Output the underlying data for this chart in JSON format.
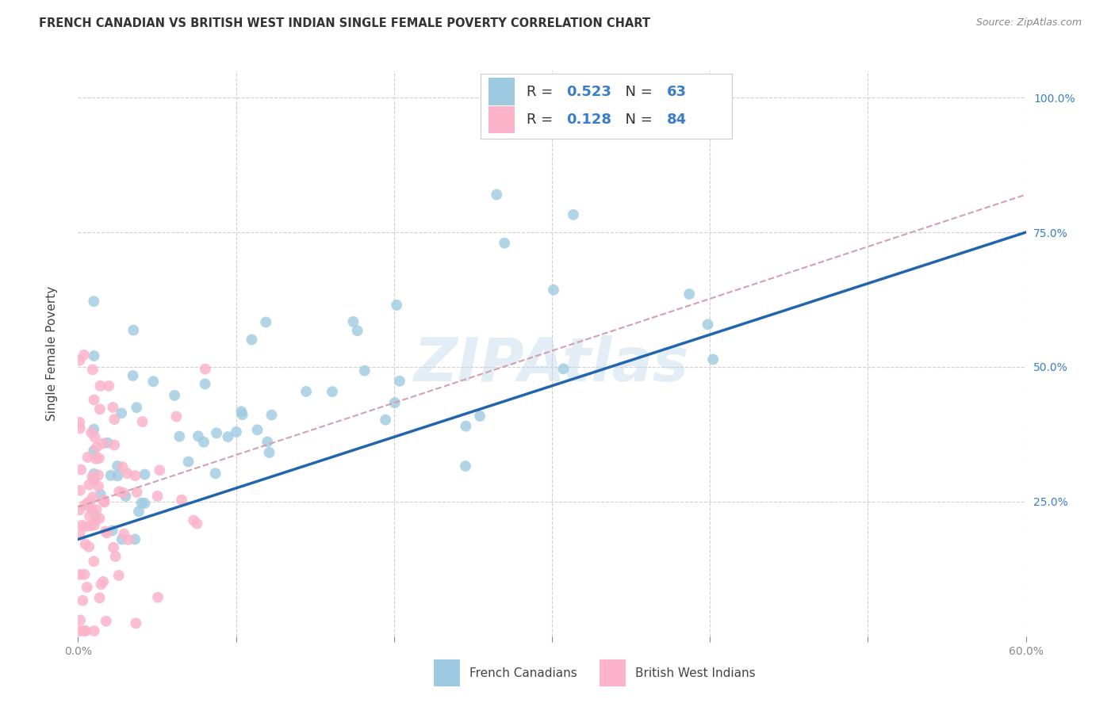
{
  "title": "FRENCH CANADIAN VS BRITISH WEST INDIAN SINGLE FEMALE POVERTY CORRELATION CHART",
  "source": "Source: ZipAtlas.com",
  "ylabel": "Single Female Poverty",
  "xlim": [
    0.0,
    0.6
  ],
  "ylim": [
    0.0,
    1.05
  ],
  "legend1_label": "French Canadians",
  "legend2_label": "British West Indians",
  "R_blue": 0.523,
  "N_blue": 63,
  "R_pink": 0.128,
  "N_pink": 84,
  "blue_color": "#9ecae1",
  "pink_color": "#fbb4c9",
  "blue_line_color": "#2166ac",
  "pink_line_color": "#d4a0b0",
  "watermark": "ZIPAtlas",
  "background_color": "#ffffff",
  "grid_color": "#d0d0d0",
  "text_blue": "#3a7dc9",
  "text_dark": "#333333"
}
